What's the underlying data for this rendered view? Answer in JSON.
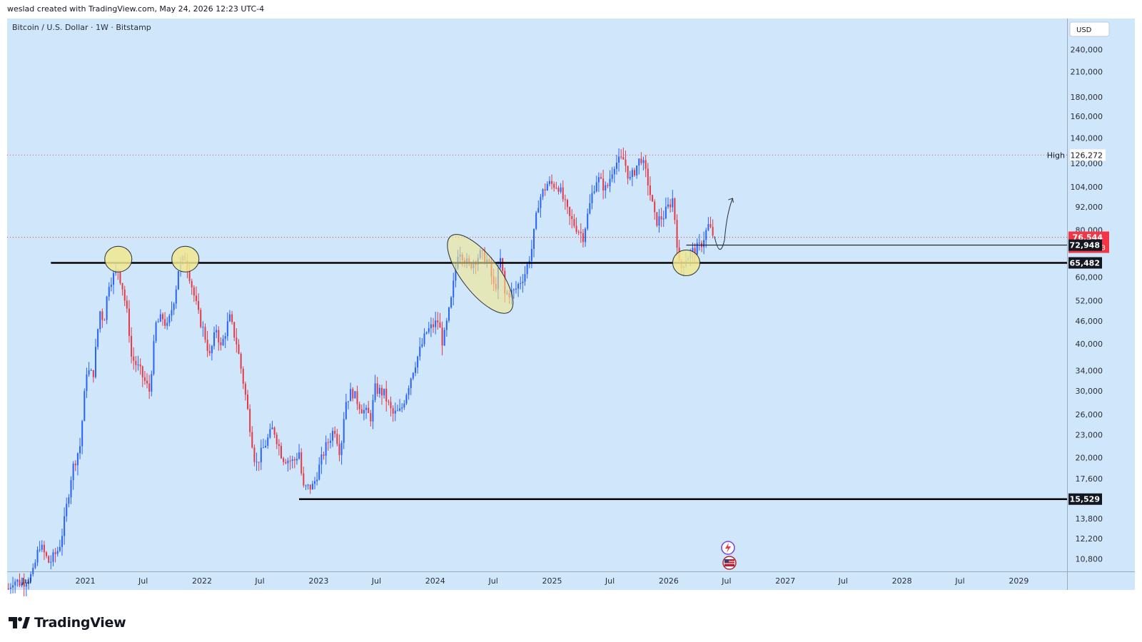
{
  "header": {
    "credit": "weslad created with TradingView.com, May 24, 2026 12:23 UTC-4"
  },
  "chart_title": "Bitcoin / U.S. Dollar · 1W · Bitstamp",
  "currency": "USD",
  "brand": {
    "name": "TradingView"
  },
  "colors": {
    "plot_bg": "#cfe6fb",
    "up": "#2962ff",
    "down": "#e53946",
    "line": "#000000",
    "current_price": "#f23645",
    "annotation_fill": "#f2e88f",
    "annotation_stroke": "#2a2e39"
  },
  "chart_data": {
    "type": "candlestick",
    "title": "Bitcoin / U.S. Dollar · 1W · Bitstamp",
    "y_scale": "log",
    "ylim": [
      10000,
      290000
    ],
    "xlim": [
      "2020-05-01",
      "2029-06-01"
    ],
    "y_ticks": [
      {
        "value": 240000,
        "label": "240,000"
      },
      {
        "value": 210000,
        "label": "210,000"
      },
      {
        "value": 180000,
        "label": "180,000"
      },
      {
        "value": 160000,
        "label": "160,000"
      },
      {
        "value": 140000,
        "label": "140,000"
      },
      {
        "value": 120000,
        "label": "120,000"
      },
      {
        "value": 104000,
        "label": "104,000"
      },
      {
        "value": 92000,
        "label": "92,000"
      },
      {
        "value": 80000,
        "label": "80,000"
      },
      {
        "value": 60000,
        "label": "60,000"
      },
      {
        "value": 52000,
        "label": "52,000"
      },
      {
        "value": 46000,
        "label": "46,000"
      },
      {
        "value": 40000,
        "label": "40,000"
      },
      {
        "value": 34000,
        "label": "34,000"
      },
      {
        "value": 30000,
        "label": "30,000"
      },
      {
        "value": 26000,
        "label": "26,000"
      },
      {
        "value": 23000,
        "label": "23,000"
      },
      {
        "value": 20000,
        "label": "20,000"
      },
      {
        "value": 17600,
        "label": "17,600"
      },
      {
        "value": 13800,
        "label": "13,800"
      },
      {
        "value": 12200,
        "label": "12,200"
      },
      {
        "value": 10800,
        "label": "10,800"
      }
    ],
    "x_ticks": [
      {
        "date": "2020-07-01",
        "label": "Jul"
      },
      {
        "date": "2021-01-01",
        "label": "2021"
      },
      {
        "date": "2021-07-01",
        "label": "Jul"
      },
      {
        "date": "2022-01-01",
        "label": "2022"
      },
      {
        "date": "2022-07-01",
        "label": "Jul"
      },
      {
        "date": "2023-01-01",
        "label": "2023"
      },
      {
        "date": "2023-07-01",
        "label": "Jul"
      },
      {
        "date": "2024-01-01",
        "label": "2024"
      },
      {
        "date": "2024-07-01",
        "label": "Jul"
      },
      {
        "date": "2025-01-01",
        "label": "2025"
      },
      {
        "date": "2025-07-01",
        "label": "Jul"
      },
      {
        "date": "2026-01-01",
        "label": "2026"
      },
      {
        "date": "2026-07-01",
        "label": "Jul"
      },
      {
        "date": "2027-01-01",
        "label": "2027"
      },
      {
        "date": "2027-07-01",
        "label": "Jul"
      },
      {
        "date": "2028-01-01",
        "label": "2028"
      },
      {
        "date": "2028-07-01",
        "label": "Jul"
      },
      {
        "date": "2029-01-01",
        "label": "2029"
      }
    ],
    "price_path": [
      [
        "2020-05-05",
        9000
      ],
      [
        "2020-05-20",
        9500
      ],
      [
        "2020-06-15",
        9300
      ],
      [
        "2020-07-20",
        9800
      ],
      [
        "2020-08-10",
        11800
      ],
      [
        "2020-09-10",
        10500
      ],
      [
        "2020-10-10",
        11500
      ],
      [
        "2020-10-25",
        13200
      ],
      [
        "2020-11-20",
        18500
      ],
      [
        "2020-12-15",
        21500
      ],
      [
        "2021-01-05",
        34000
      ],
      [
        "2021-01-25",
        33000
      ],
      [
        "2021-02-15",
        49000
      ],
      [
        "2021-02-28",
        46000
      ],
      [
        "2021-03-15",
        58000
      ],
      [
        "2021-04-13",
        63000
      ],
      [
        "2021-04-28",
        56000
      ],
      [
        "2021-05-15",
        46000
      ],
      [
        "2021-05-25",
        37000
      ],
      [
        "2021-06-20",
        34000
      ],
      [
        "2021-07-20",
        30000
      ],
      [
        "2021-08-10",
        45000
      ],
      [
        "2021-08-30",
        47000
      ],
      [
        "2021-09-15",
        44000
      ],
      [
        "2021-10-10",
        55000
      ],
      [
        "2021-10-20",
        64000
      ],
      [
        "2021-11-10",
        68000
      ],
      [
        "2021-11-30",
        57000
      ],
      [
        "2021-12-20",
        48000
      ],
      [
        "2022-01-10",
        42000
      ],
      [
        "2022-01-25",
        37000
      ],
      [
        "2022-02-15",
        44000
      ],
      [
        "2022-03-01",
        39000
      ],
      [
        "2022-03-28",
        47000
      ],
      [
        "2022-04-20",
        40000
      ],
      [
        "2022-05-15",
        30000
      ],
      [
        "2022-06-18",
        19000
      ],
      [
        "2022-07-10",
        21000
      ],
      [
        "2022-08-12",
        24000
      ],
      [
        "2022-09-10",
        20000
      ],
      [
        "2022-10-15",
        19500
      ],
      [
        "2022-11-05",
        21000
      ],
      [
        "2022-11-10",
        16500
      ],
      [
        "2022-12-15",
        16800
      ],
      [
        "2023-01-20",
        21000
      ],
      [
        "2023-02-20",
        24000
      ],
      [
        "2023-03-10",
        20500
      ],
      [
        "2023-03-25",
        28000
      ],
      [
        "2023-04-15",
        30000
      ],
      [
        "2023-05-15",
        27000
      ],
      [
        "2023-06-15",
        25500
      ],
      [
        "2023-06-25",
        30500
      ],
      [
        "2023-07-25",
        29500
      ],
      [
        "2023-08-20",
        26000
      ],
      [
        "2023-09-15",
        26500
      ],
      [
        "2023-10-25",
        34500
      ],
      [
        "2023-12-05",
        43000
      ],
      [
        "2024-01-10",
        46000
      ],
      [
        "2024-01-25",
        40000
      ],
      [
        "2024-02-20",
        52000
      ],
      [
        "2024-03-14",
        72000
      ],
      [
        "2024-04-15",
        64000
      ],
      [
        "2024-05-20",
        69000
      ],
      [
        "2024-06-15",
        66000
      ],
      [
        "2024-07-05",
        55000
      ],
      [
        "2024-07-25",
        68000
      ],
      [
        "2024-08-05",
        54000
      ],
      [
        "2024-09-05",
        55000
      ],
      [
        "2024-10-10",
        62000
      ],
      [
        "2024-10-30",
        72000
      ],
      [
        "2024-11-20",
        96000
      ],
      [
        "2024-12-17",
        106000
      ],
      [
        "2025-01-20",
        105000
      ],
      [
        "2025-02-25",
        86000
      ],
      [
        "2025-04-08",
        77000
      ],
      [
        "2025-05-10",
        103000
      ],
      [
        "2025-05-22",
        110000
      ],
      [
        "2025-06-20",
        102000
      ],
      [
        "2025-07-14",
        120000
      ],
      [
        "2025-08-14",
        123000
      ],
      [
        "2025-09-01",
        108000
      ],
      [
        "2025-10-06",
        125000
      ],
      [
        "2025-10-25",
        110000
      ],
      [
        "2025-11-21",
        84000
      ],
      [
        "2025-12-15",
        87000
      ],
      [
        "2026-01-14",
        97000
      ],
      [
        "2026-02-05",
        62000
      ],
      [
        "2026-02-20",
        67000
      ],
      [
        "2026-03-15",
        70000
      ],
      [
        "2026-04-10",
        72500
      ],
      [
        "2026-05-05",
        82000
      ],
      [
        "2026-05-24",
        76544
      ]
    ],
    "levels": [
      {
        "name": "resistance-support",
        "price": 65482,
        "label": "65,482",
        "from": "2020-09-15"
      },
      {
        "name": "cycle-low",
        "price": 15529,
        "label": "15,529",
        "from": "2022-11-01"
      },
      {
        "name": "breakout-level",
        "price": 72948,
        "label": "72,948",
        "from": "2026-02-25"
      }
    ],
    "high": {
      "price": 126272,
      "label": "126,272",
      "text": "High"
    },
    "current": {
      "price": 76544,
      "label": "76,544",
      "countdown": "07:36:43"
    },
    "annotations": [
      {
        "type": "circle",
        "date": "2021-04-14",
        "price": 67000
      },
      {
        "type": "circle",
        "date": "2021-11-10",
        "price": 67000
      },
      {
        "type": "ellipse",
        "from": [
          "2024-03-01",
          75000
        ],
        "to": [
          "2024-08-10",
          50000
        ]
      },
      {
        "type": "circle",
        "date": "2026-02-25",
        "price": 65482
      }
    ],
    "projection": [
      [
        "2026-05-24",
        77000
      ],
      [
        "2026-06-10",
        70500
      ],
      [
        "2026-06-25",
        75500
      ],
      [
        "2026-07-10",
        92000
      ],
      [
        "2026-07-20",
        97000
      ]
    ]
  }
}
